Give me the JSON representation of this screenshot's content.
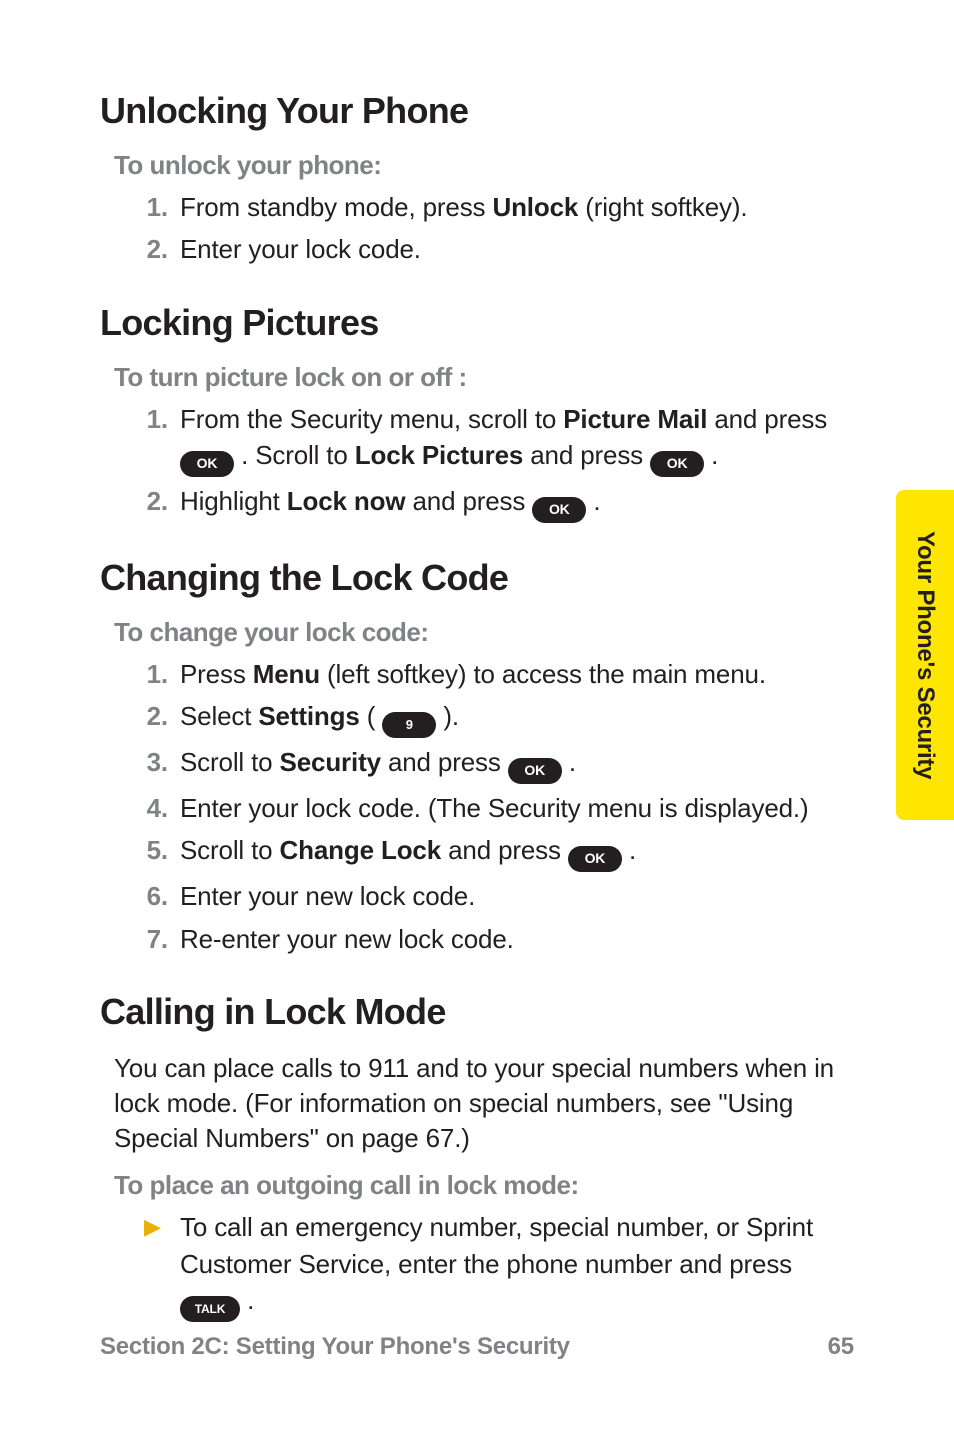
{
  "side_tab_label": "Your Phone's Security",
  "footer": {
    "section": "Section 2C: Setting Your Phone's Security",
    "page": "65"
  },
  "s1": {
    "title": "Unlocking Your Phone",
    "sub": "To unlock your phone:",
    "li1_num": "1.",
    "li1_a": "From standby mode, press ",
    "li1_b": "Unlock",
    "li1_c": " (right softkey).",
    "li2_num": "2.",
    "li2": "Enter your lock code."
  },
  "s2": {
    "title": "Locking Pictures",
    "sub": "To turn picture lock on or off :",
    "li1_num": "1.",
    "li1_a": "From the Security menu, scroll to ",
    "li1_b": "Picture Mail",
    "li1_c": " and press ",
    "li1_d": " . Scroll to ",
    "li1_e": "Lock Pictures",
    "li1_f": " and press ",
    "li1_g": " .",
    "li2_num": "2.",
    "li2_a": "Highlight ",
    "li2_b": "Lock now",
    "li2_c": " and press ",
    "li2_d": " ."
  },
  "s3": {
    "title": "Changing the Lock Code",
    "sub": "To change your lock code:",
    "li1_num": "1.",
    "li1_a": "Press ",
    "li1_b": "Menu",
    "li1_c": " (left softkey) to access the main menu.",
    "li2_num": "2.",
    "li2_a": "Select ",
    "li2_b": "Settings",
    "li2_c": " ( ",
    "li2_d": " ).",
    "li3_num": "3.",
    "li3_a": "Scroll to ",
    "li3_b": "Security",
    "li3_c": " and press ",
    "li3_d": " .",
    "li4_num": "4.",
    "li4": "Enter your lock code. (The Security menu is displayed.)",
    "li5_num": "5.",
    "li5_a": "Scroll to ",
    "li5_b": "Change Lock",
    "li5_c": " and press ",
    "li5_d": " .",
    "li6_num": "6.",
    "li6": "Enter your new lock code.",
    "li7_num": "7.",
    "li7": "Re-enter your new lock code."
  },
  "s4": {
    "title": "Calling in Lock Mode",
    "body": "You can place calls to 911 and to your special numbers when in lock mode. (For information on special numbers, see \"Using Special Numbers\" on page 67.)",
    "sub": "To place an outgoing call in lock mode:",
    "b1_a": "To call an emergency number, special number, or Sprint Customer Service, enter the phone number and press ",
    "b1_b": " ."
  },
  "keys": {
    "ok": "OK",
    "nine": "9",
    "talk": "TALK"
  },
  "glyphs": {
    "arrow": "▶"
  }
}
